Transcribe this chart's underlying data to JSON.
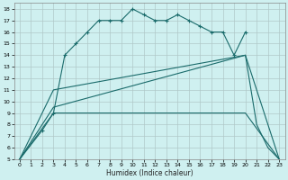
{
  "xlabel": "Humidex (Indice chaleur)",
  "bg_color": "#cff0f0",
  "grid_color": "#b0c8c8",
  "line_color": "#1a6b6b",
  "xlim": [
    -0.5,
    23.5
  ],
  "ylim": [
    5,
    18.5
  ],
  "xticks": [
    0,
    1,
    2,
    3,
    4,
    5,
    6,
    7,
    8,
    9,
    10,
    11,
    12,
    13,
    14,
    15,
    16,
    17,
    18,
    19,
    20,
    21,
    22,
    23
  ],
  "yticks": [
    5,
    6,
    7,
    8,
    9,
    10,
    11,
    12,
    13,
    14,
    15,
    16,
    17,
    18
  ],
  "series": [
    {
      "x": [
        0,
        2,
        3,
        4,
        5,
        6,
        7,
        8,
        9,
        10,
        11,
        12,
        13,
        14,
        15,
        16,
        17,
        18,
        19,
        20
      ],
      "y": [
        5,
        7.5,
        9,
        14,
        15,
        16,
        17,
        17,
        17,
        18,
        17.5,
        17,
        17,
        17.5,
        17,
        16.5,
        16,
        16,
        14,
        16
      ],
      "marker": true
    },
    {
      "x": [
        0,
        3,
        20,
        21,
        22,
        23
      ],
      "y": [
        5,
        11,
        14,
        8,
        6,
        5
      ],
      "marker": false
    },
    {
      "x": [
        0,
        3,
        20,
        23
      ],
      "y": [
        5,
        9.5,
        14,
        5
      ],
      "marker": false
    },
    {
      "x": [
        0,
        3,
        20,
        23
      ],
      "y": [
        5,
        9,
        9,
        5
      ],
      "marker": false
    }
  ]
}
